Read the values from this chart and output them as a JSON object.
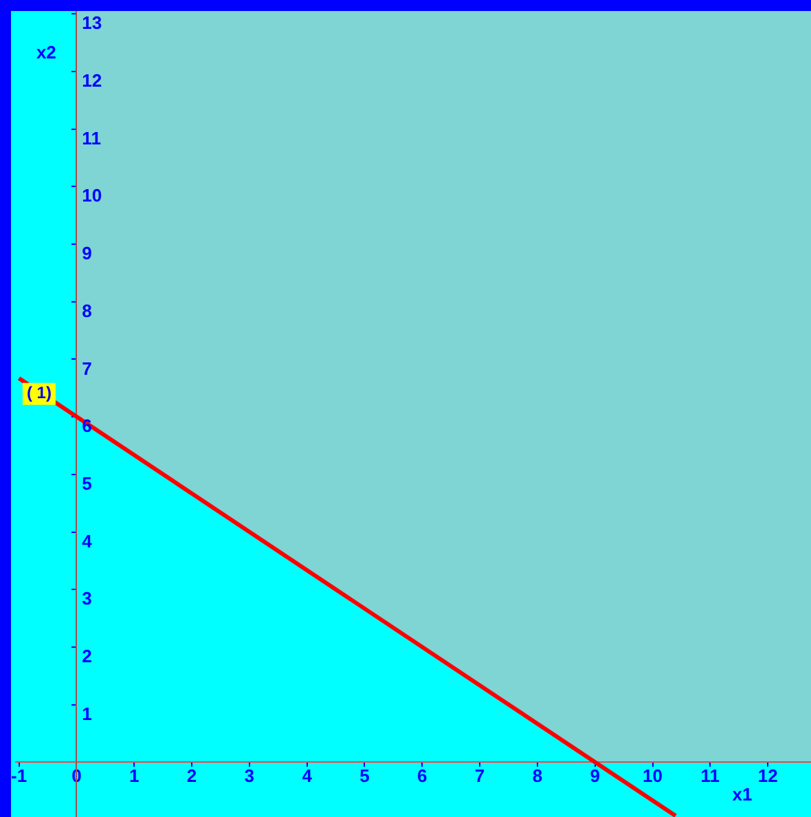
{
  "chart_data": {
    "type": "line",
    "xlabel": "x1",
    "ylabel": "x2",
    "xlim": [
      -1.05,
      12.75
    ],
    "ylim": [
      -0.95,
      13.05
    ],
    "xticks": [
      -1,
      0,
      1,
      2,
      3,
      4,
      5,
      6,
      7,
      8,
      9,
      10,
      11,
      12
    ],
    "yticks": [
      1,
      2,
      3,
      4,
      5,
      6,
      7,
      8,
      9,
      10,
      11,
      12,
      13
    ],
    "grid": false,
    "legend": false,
    "marker": "none",
    "line_style": "solid",
    "annotations": [
      {
        "text": "( 1)",
        "x": -0.65,
        "y": 6.4
      }
    ],
    "series": [
      {
        "type": "line",
        "color": "#ff0000",
        "x": [
          -1,
          10.4
        ],
        "values": [
          6.67,
          -0.93
        ]
      }
    ]
  }
}
